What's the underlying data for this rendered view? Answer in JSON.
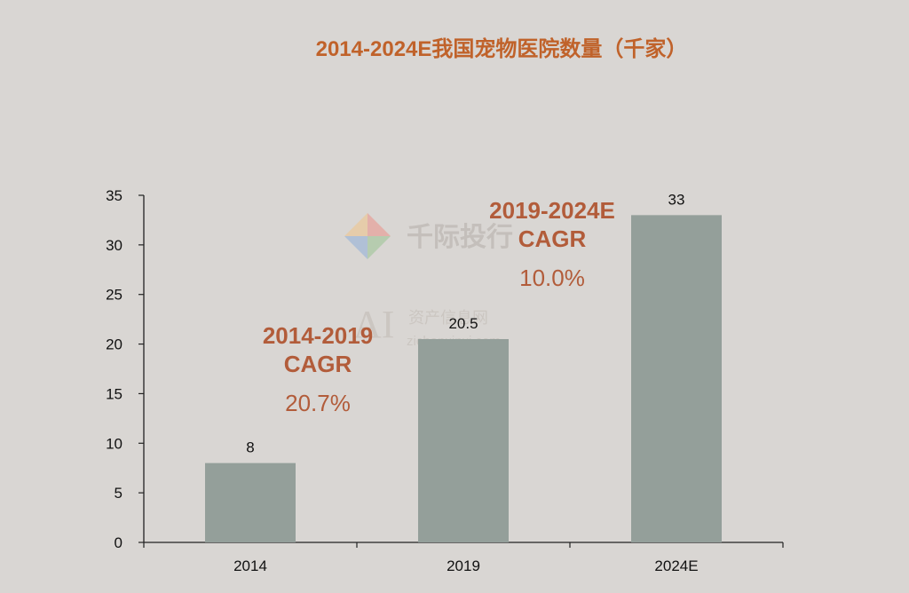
{
  "chart_data": {
    "type": "bar",
    "title": "2014-2024E我国宠物医院数量（千家）",
    "categories": [
      "2014",
      "2019",
      "2024E"
    ],
    "values": [
      8,
      20.5,
      33
    ],
    "data_labels": [
      "8",
      "20.5",
      "33"
    ],
    "ylim": [
      0,
      35
    ],
    "yticks": [
      "0",
      "5",
      "10",
      "15",
      "20",
      "25",
      "30",
      "35"
    ],
    "grid": false,
    "bar_color": "#949f9a",
    "annotations": [
      {
        "lines": [
          "2014-2019",
          "CAGR"
        ],
        "value": "20.7%"
      },
      {
        "lines": [
          "2019-2024E",
          "CAGR"
        ],
        "value": "10.0%"
      }
    ],
    "annotation_color": "#b25c3a",
    "title_color": "#c0622a"
  },
  "watermarks": {
    "brand": "千际投行",
    "site_cn": "资产信息网",
    "site_url": "zichanxinxi.com",
    "logo_text": "AI"
  }
}
